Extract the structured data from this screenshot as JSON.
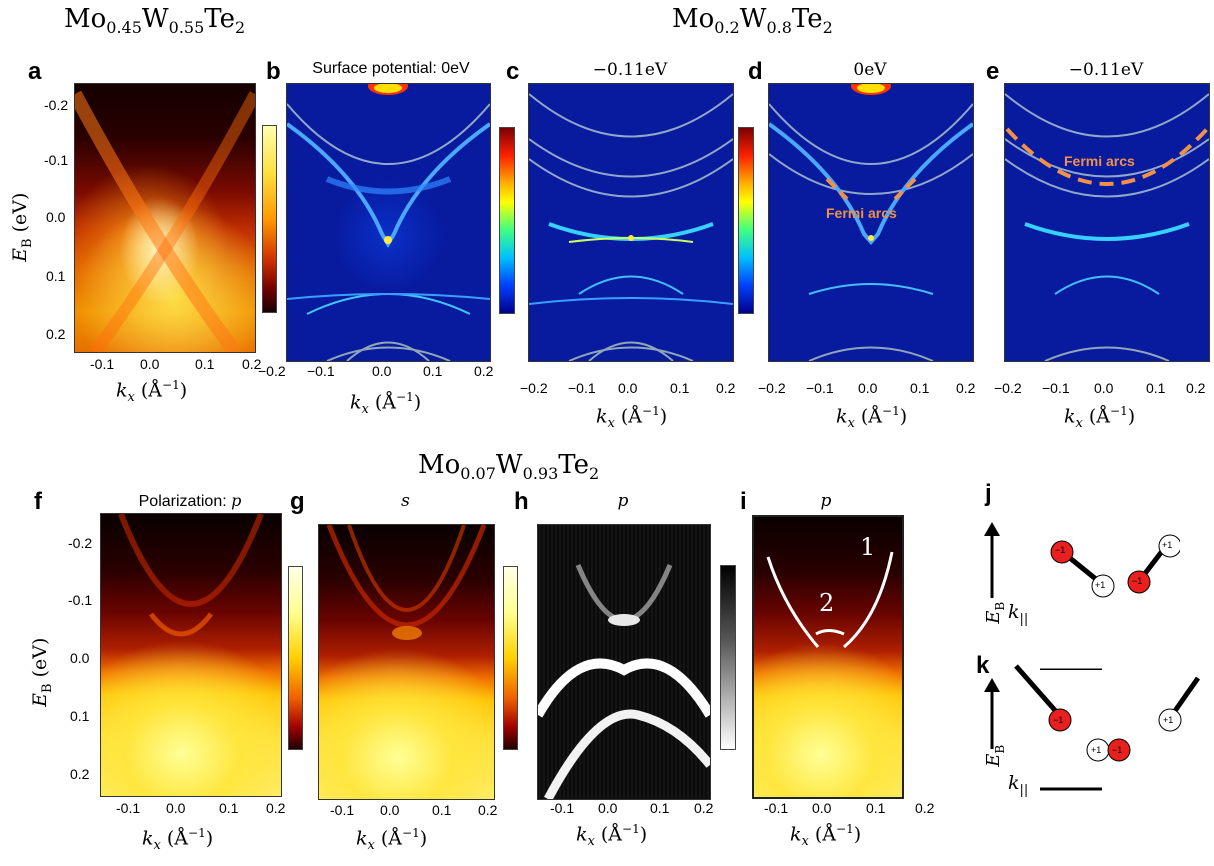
{
  "titles": {
    "top_left": {
      "base1": "Mo",
      "sub1": "0.45",
      "base2": "W",
      "sub2": "0.55",
      "base3": "Te",
      "sub3": "2"
    },
    "top_right": {
      "base1": "Mo",
      "sub1": "0.2",
      "base2": "W",
      "sub2": "0.8",
      "base3": "Te",
      "sub3": "2"
    },
    "bottom": {
      "base1": "Mo",
      "sub1": "0.07",
      "base2": "W",
      "sub2": "0.93",
      "base3": "Te",
      "sub3": "2"
    }
  },
  "panels": {
    "a": "a",
    "b": "b",
    "c": "c",
    "d": "d",
    "e": "e",
    "f": "f",
    "g": "g",
    "h": "h",
    "i": "i",
    "j": "j",
    "k": "k"
  },
  "panel_titles": {
    "b": "Surface potential: 0eV",
    "c": "−0.11eV",
    "d": "0eV",
    "e": "−0.11eV",
    "f_prefix": "Polarization: ",
    "f_var": "p",
    "g": "s",
    "h": "p",
    "i": "p"
  },
  "annotations": {
    "fermi_arcs_d": "Fermi arcs",
    "fermi_arcs_e": "Fermi arcs",
    "band_1": "1",
    "band_2": "2"
  },
  "axes": {
    "ylabel": "E",
    "ylabel_sub": "B",
    "ylabel_unit": " (eV)",
    "xlabel": "k",
    "xlabel_sub": "x",
    "xlabel_unit": " (Å",
    "xlabel_exp": "−1",
    "xlabel_close": ")",
    "y_ticks_top": [
      "-0.2",
      "-0.1",
      "0.0",
      "0.1",
      "0.2"
    ],
    "x_ticks_a": [
      "-0.1",
      "0.0",
      "0.1",
      "0.2"
    ],
    "x_ticks_calc": [
      "−0.2",
      "−0.1",
      "0.0",
      "0.1",
      "0.2"
    ],
    "y_ticks_bottom": [
      "-0.2",
      "-0.1",
      "0.0",
      "0.1",
      "0.2"
    ],
    "x_ticks_bottom": [
      "-0.1",
      "0.0",
      "0.1",
      "0.2"
    ]
  },
  "schematic": {
    "eb": "E",
    "eb_sub": "B",
    "k": "k",
    "k_sub": "||",
    "plus": "+1",
    "minus": "−1"
  },
  "colors": {
    "red_orbital": "#e8201e",
    "fermi_arc": "#f0914a",
    "calc_bg": "#0a1ea0"
  }
}
